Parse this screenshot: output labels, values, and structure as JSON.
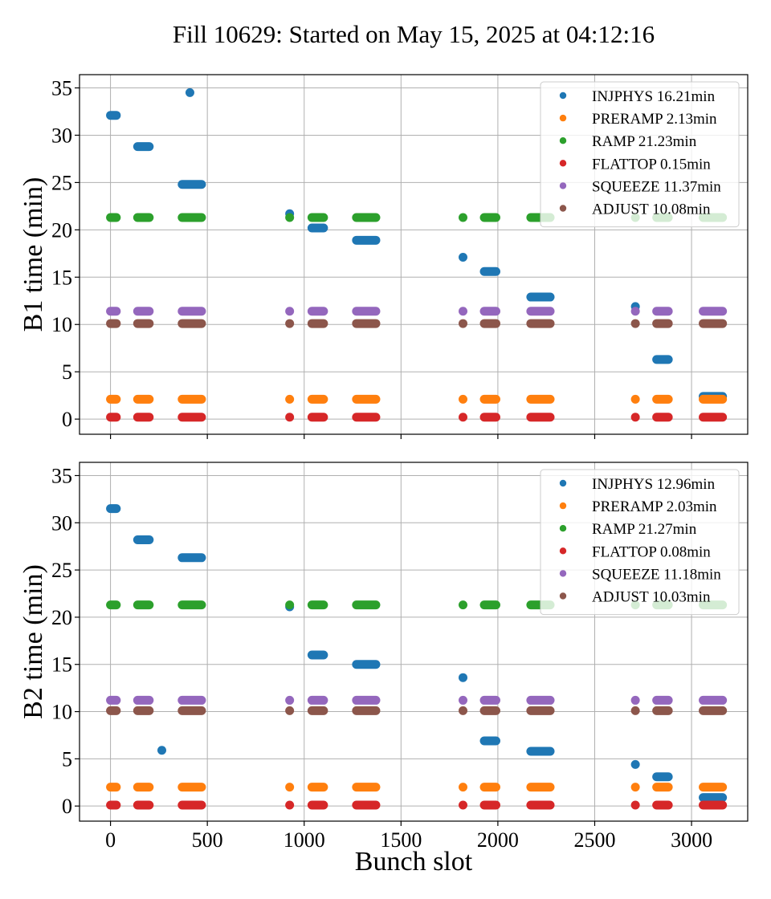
{
  "figure": {
    "title": "Fill 10629: Started on May 15, 2025 at 04:12:16"
  },
  "colors": {
    "INJPHYS": "#1f77b4",
    "PRERAMP": "#ff7f0e",
    "RAMP": "#2ca02c",
    "FLATTOP": "#d62728",
    "SQUEEZE": "#9467bd",
    "ADJUST": "#8c564b"
  },
  "chart_data": [
    {
      "type": "scatter",
      "panel": "B1",
      "xlabel": "",
      "ylabel": "B1 time (min)",
      "xlim": [
        -160,
        3290
      ],
      "ylim": [
        -1.6,
        36.4
      ],
      "xticks": [
        0,
        500,
        1000,
        1500,
        2000,
        2500,
        3000
      ],
      "yticks": [
        0,
        5,
        10,
        15,
        20,
        25,
        30,
        35
      ],
      "xtick_labels_visible": false,
      "grid": true,
      "legend_position": "top-right",
      "series": [
        {
          "name": "INJPHYS 16.21min",
          "phase": "INJPHYS",
          "segments": [
            {
              "x0": 0,
              "x1": 30,
              "y": 32.1
            },
            {
              "x0": 140,
              "x1": 200,
              "y": 28.8
            },
            {
              "x0": 410,
              "x1": 410,
              "y": 34.5
            },
            {
              "x0": 370,
              "x1": 470,
              "y": 24.8
            },
            {
              "x0": 925,
              "x1": 925,
              "y": 21.7
            },
            {
              "x0": 1040,
              "x1": 1100,
              "y": 20.2
            },
            {
              "x0": 1270,
              "x1": 1370,
              "y": 18.9
            },
            {
              "x0": 1820,
              "x1": 1820,
              "y": 17.1
            },
            {
              "x0": 1930,
              "x1": 1990,
              "y": 15.6
            },
            {
              "x0": 2170,
              "x1": 2270,
              "y": 12.9
            },
            {
              "x0": 2710,
              "x1": 2710,
              "y": 11.9
            },
            {
              "x0": 2820,
              "x1": 2880,
              "y": 6.3
            },
            {
              "x0": 3060,
              "x1": 3160,
              "y": 2.4
            }
          ]
        },
        {
          "name": "PRERAMP 2.13min",
          "phase": "PRERAMP",
          "segments": [
            {
              "x0": 0,
              "x1": 30,
              "y": 2.1
            },
            {
              "x0": 140,
              "x1": 200,
              "y": 2.1
            },
            {
              "x0": 370,
              "x1": 470,
              "y": 2.1
            },
            {
              "x0": 925,
              "x1": 925,
              "y": 2.1
            },
            {
              "x0": 1040,
              "x1": 1100,
              "y": 2.1
            },
            {
              "x0": 1270,
              "x1": 1370,
              "y": 2.1
            },
            {
              "x0": 1820,
              "x1": 1820,
              "y": 2.1
            },
            {
              "x0": 1930,
              "x1": 1990,
              "y": 2.1
            },
            {
              "x0": 2170,
              "x1": 2270,
              "y": 2.1
            },
            {
              "x0": 2710,
              "x1": 2710,
              "y": 2.1
            },
            {
              "x0": 2820,
              "x1": 2880,
              "y": 2.1
            },
            {
              "x0": 3060,
              "x1": 3160,
              "y": 2.1
            }
          ]
        },
        {
          "name": "RAMP 21.23min",
          "phase": "RAMP",
          "segments": [
            {
              "x0": 0,
              "x1": 30,
              "y": 21.3
            },
            {
              "x0": 140,
              "x1": 200,
              "y": 21.3
            },
            {
              "x0": 370,
              "x1": 470,
              "y": 21.3
            },
            {
              "x0": 925,
              "x1": 925,
              "y": 21.3
            },
            {
              "x0": 1040,
              "x1": 1100,
              "y": 21.3
            },
            {
              "x0": 1270,
              "x1": 1370,
              "y": 21.3
            },
            {
              "x0": 1820,
              "x1": 1820,
              "y": 21.3
            },
            {
              "x0": 1930,
              "x1": 1990,
              "y": 21.3
            },
            {
              "x0": 2170,
              "x1": 2270,
              "y": 21.3
            },
            {
              "x0": 2710,
              "x1": 2710,
              "y": 21.3
            },
            {
              "x0": 2820,
              "x1": 2880,
              "y": 21.3
            },
            {
              "x0": 3060,
              "x1": 3160,
              "y": 21.3
            }
          ]
        },
        {
          "name": "FLATTOP 0.15min",
          "phase": "FLATTOP",
          "segments": [
            {
              "x0": 0,
              "x1": 30,
              "y": 0.2
            },
            {
              "x0": 140,
              "x1": 200,
              "y": 0.2
            },
            {
              "x0": 370,
              "x1": 470,
              "y": 0.2
            },
            {
              "x0": 925,
              "x1": 925,
              "y": 0.2
            },
            {
              "x0": 1040,
              "x1": 1100,
              "y": 0.2
            },
            {
              "x0": 1270,
              "x1": 1370,
              "y": 0.2
            },
            {
              "x0": 1820,
              "x1": 1820,
              "y": 0.2
            },
            {
              "x0": 1930,
              "x1": 1990,
              "y": 0.2
            },
            {
              "x0": 2170,
              "x1": 2270,
              "y": 0.2
            },
            {
              "x0": 2710,
              "x1": 2710,
              "y": 0.2
            },
            {
              "x0": 2820,
              "x1": 2880,
              "y": 0.2
            },
            {
              "x0": 3060,
              "x1": 3160,
              "y": 0.2
            }
          ]
        },
        {
          "name": "SQUEEZE 11.37min",
          "phase": "SQUEEZE",
          "segments": [
            {
              "x0": 0,
              "x1": 30,
              "y": 11.4
            },
            {
              "x0": 140,
              "x1": 200,
              "y": 11.4
            },
            {
              "x0": 370,
              "x1": 470,
              "y": 11.4
            },
            {
              "x0": 925,
              "x1": 925,
              "y": 11.4
            },
            {
              "x0": 1040,
              "x1": 1100,
              "y": 11.4
            },
            {
              "x0": 1270,
              "x1": 1370,
              "y": 11.4
            },
            {
              "x0": 1820,
              "x1": 1820,
              "y": 11.4
            },
            {
              "x0": 1930,
              "x1": 1990,
              "y": 11.4
            },
            {
              "x0": 2170,
              "x1": 2270,
              "y": 11.4
            },
            {
              "x0": 2710,
              "x1": 2710,
              "y": 11.4
            },
            {
              "x0": 2820,
              "x1": 2880,
              "y": 11.4
            },
            {
              "x0": 3060,
              "x1": 3160,
              "y": 11.4
            }
          ]
        },
        {
          "name": "ADJUST 10.08min",
          "phase": "ADJUST",
          "segments": [
            {
              "x0": 0,
              "x1": 30,
              "y": 10.1
            },
            {
              "x0": 140,
              "x1": 200,
              "y": 10.1
            },
            {
              "x0": 370,
              "x1": 470,
              "y": 10.1
            },
            {
              "x0": 925,
              "x1": 925,
              "y": 10.1
            },
            {
              "x0": 1040,
              "x1": 1100,
              "y": 10.1
            },
            {
              "x0": 1270,
              "x1": 1370,
              "y": 10.1
            },
            {
              "x0": 1820,
              "x1": 1820,
              "y": 10.1
            },
            {
              "x0": 1930,
              "x1": 1990,
              "y": 10.1
            },
            {
              "x0": 2170,
              "x1": 2270,
              "y": 10.1
            },
            {
              "x0": 2710,
              "x1": 2710,
              "y": 10.1
            },
            {
              "x0": 2820,
              "x1": 2880,
              "y": 10.1
            },
            {
              "x0": 3060,
              "x1": 3160,
              "y": 10.1
            }
          ]
        }
      ]
    },
    {
      "type": "scatter",
      "panel": "B2",
      "xlabel": "Bunch slot",
      "ylabel": "B2 time (min)",
      "xlim": [
        -160,
        3290
      ],
      "ylim": [
        -1.6,
        36.4
      ],
      "xticks": [
        0,
        500,
        1000,
        1500,
        2000,
        2500,
        3000
      ],
      "yticks": [
        0,
        5,
        10,
        15,
        20,
        25,
        30,
        35
      ],
      "xtick_labels_visible": true,
      "grid": true,
      "legend_position": "top-right",
      "series": [
        {
          "name": "INJPHYS 12.96min",
          "phase": "INJPHYS",
          "segments": [
            {
              "x0": 0,
              "x1": 30,
              "y": 31.5
            },
            {
              "x0": 140,
              "x1": 200,
              "y": 28.2
            },
            {
              "x0": 370,
              "x1": 470,
              "y": 26.3
            },
            {
              "x0": 265,
              "x1": 265,
              "y": 5.9
            },
            {
              "x0": 925,
              "x1": 925,
              "y": 21.1
            },
            {
              "x0": 1040,
              "x1": 1100,
              "y": 16.0
            },
            {
              "x0": 1270,
              "x1": 1370,
              "y": 15.0
            },
            {
              "x0": 1820,
              "x1": 1820,
              "y": 13.6
            },
            {
              "x0": 1930,
              "x1": 1990,
              "y": 6.9
            },
            {
              "x0": 2170,
              "x1": 2270,
              "y": 5.8
            },
            {
              "x0": 2710,
              "x1": 2710,
              "y": 4.4
            },
            {
              "x0": 2820,
              "x1": 2880,
              "y": 3.1
            },
            {
              "x0": 3060,
              "x1": 3160,
              "y": 0.9
            }
          ]
        },
        {
          "name": "PRERAMP 2.03min",
          "phase": "PRERAMP",
          "segments": [
            {
              "x0": 0,
              "x1": 30,
              "y": 2.0
            },
            {
              "x0": 140,
              "x1": 200,
              "y": 2.0
            },
            {
              "x0": 370,
              "x1": 470,
              "y": 2.0
            },
            {
              "x0": 925,
              "x1": 925,
              "y": 2.0
            },
            {
              "x0": 1040,
              "x1": 1100,
              "y": 2.0
            },
            {
              "x0": 1270,
              "x1": 1370,
              "y": 2.0
            },
            {
              "x0": 1820,
              "x1": 1820,
              "y": 2.0
            },
            {
              "x0": 1930,
              "x1": 1990,
              "y": 2.0
            },
            {
              "x0": 2170,
              "x1": 2270,
              "y": 2.0
            },
            {
              "x0": 2710,
              "x1": 2710,
              "y": 2.0
            },
            {
              "x0": 2820,
              "x1": 2880,
              "y": 2.0
            },
            {
              "x0": 3060,
              "x1": 3160,
              "y": 2.0
            }
          ]
        },
        {
          "name": "RAMP 21.27min",
          "phase": "RAMP",
          "segments": [
            {
              "x0": 0,
              "x1": 30,
              "y": 21.3
            },
            {
              "x0": 140,
              "x1": 200,
              "y": 21.3
            },
            {
              "x0": 370,
              "x1": 470,
              "y": 21.3
            },
            {
              "x0": 925,
              "x1": 925,
              "y": 21.3
            },
            {
              "x0": 1040,
              "x1": 1100,
              "y": 21.3
            },
            {
              "x0": 1270,
              "x1": 1370,
              "y": 21.3
            },
            {
              "x0": 1820,
              "x1": 1820,
              "y": 21.3
            },
            {
              "x0": 1930,
              "x1": 1990,
              "y": 21.3
            },
            {
              "x0": 2170,
              "x1": 2270,
              "y": 21.3
            },
            {
              "x0": 2710,
              "x1": 2710,
              "y": 21.3
            },
            {
              "x0": 2820,
              "x1": 2880,
              "y": 21.3
            },
            {
              "x0": 3060,
              "x1": 3160,
              "y": 21.3
            }
          ]
        },
        {
          "name": "FLATTOP 0.08min",
          "phase": "FLATTOP",
          "segments": [
            {
              "x0": 0,
              "x1": 30,
              "y": 0.1
            },
            {
              "x0": 140,
              "x1": 200,
              "y": 0.1
            },
            {
              "x0": 370,
              "x1": 470,
              "y": 0.1
            },
            {
              "x0": 925,
              "x1": 925,
              "y": 0.1
            },
            {
              "x0": 1040,
              "x1": 1100,
              "y": 0.1
            },
            {
              "x0": 1270,
              "x1": 1370,
              "y": 0.1
            },
            {
              "x0": 1820,
              "x1": 1820,
              "y": 0.1
            },
            {
              "x0": 1930,
              "x1": 1990,
              "y": 0.1
            },
            {
              "x0": 2170,
              "x1": 2270,
              "y": 0.1
            },
            {
              "x0": 2710,
              "x1": 2710,
              "y": 0.1
            },
            {
              "x0": 2820,
              "x1": 2880,
              "y": 0.1
            },
            {
              "x0": 3060,
              "x1": 3160,
              "y": 0.1
            }
          ]
        },
        {
          "name": "SQUEEZE 11.18min",
          "phase": "SQUEEZE",
          "segments": [
            {
              "x0": 0,
              "x1": 30,
              "y": 11.2
            },
            {
              "x0": 140,
              "x1": 200,
              "y": 11.2
            },
            {
              "x0": 370,
              "x1": 470,
              "y": 11.2
            },
            {
              "x0": 925,
              "x1": 925,
              "y": 11.2
            },
            {
              "x0": 1040,
              "x1": 1100,
              "y": 11.2
            },
            {
              "x0": 1270,
              "x1": 1370,
              "y": 11.2
            },
            {
              "x0": 1820,
              "x1": 1820,
              "y": 11.2
            },
            {
              "x0": 1930,
              "x1": 1990,
              "y": 11.2
            },
            {
              "x0": 2170,
              "x1": 2270,
              "y": 11.2
            },
            {
              "x0": 2710,
              "x1": 2710,
              "y": 11.2
            },
            {
              "x0": 2820,
              "x1": 2880,
              "y": 11.2
            },
            {
              "x0": 3060,
              "x1": 3160,
              "y": 11.2
            }
          ]
        },
        {
          "name": "ADJUST 10.03min",
          "phase": "ADJUST",
          "segments": [
            {
              "x0": 0,
              "x1": 30,
              "y": 10.1
            },
            {
              "x0": 140,
              "x1": 200,
              "y": 10.1
            },
            {
              "x0": 370,
              "x1": 470,
              "y": 10.1
            },
            {
              "x0": 925,
              "x1": 925,
              "y": 10.1
            },
            {
              "x0": 1040,
              "x1": 1100,
              "y": 10.1
            },
            {
              "x0": 1270,
              "x1": 1370,
              "y": 10.1
            },
            {
              "x0": 1820,
              "x1": 1820,
              "y": 10.1
            },
            {
              "x0": 1930,
              "x1": 1990,
              "y": 10.1
            },
            {
              "x0": 2170,
              "x1": 2270,
              "y": 10.1
            },
            {
              "x0": 2710,
              "x1": 2710,
              "y": 10.1
            },
            {
              "x0": 2820,
              "x1": 2880,
              "y": 10.1
            },
            {
              "x0": 3060,
              "x1": 3160,
              "y": 10.1
            }
          ]
        }
      ]
    }
  ]
}
